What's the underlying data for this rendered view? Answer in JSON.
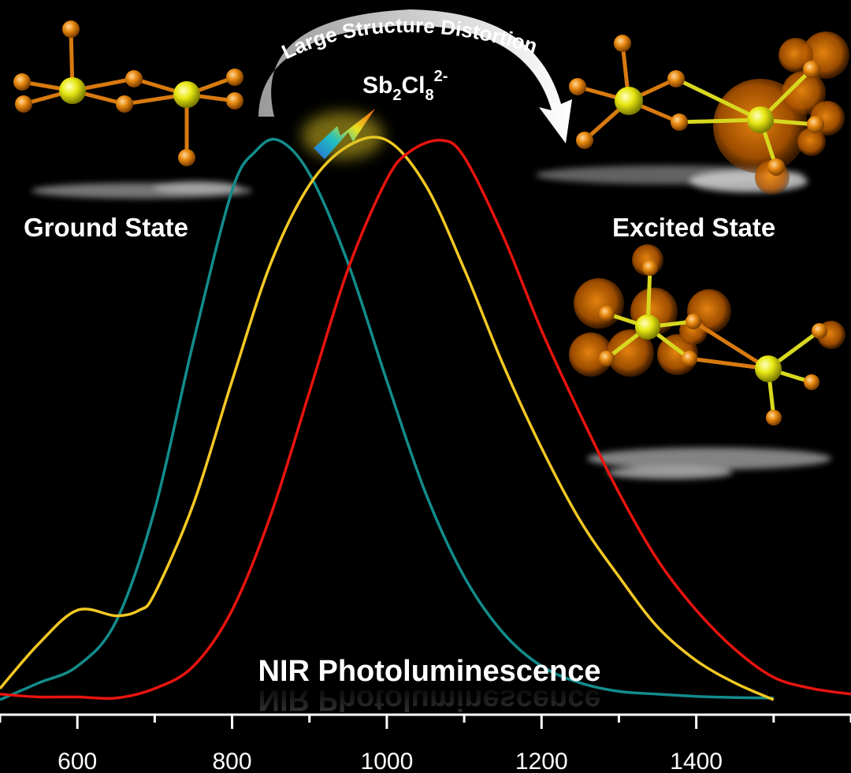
{
  "labels": {
    "ground_state": "Ground State",
    "excited_state": "Excited State",
    "distortion": "Large Structure Distortion",
    "formula": {
      "base": "Sb",
      "sub1": "2",
      "mid": "Cl",
      "sub2": "8",
      "sup": "2-"
    },
    "photoluminescence": "NIR Photoluminescence"
  },
  "colors": {
    "background": "#000000",
    "atom_sb": "#e8e814",
    "atom_cl": "#e88a10",
    "bond_sb": "#d8d820",
    "bond_cl": "#d87a10",
    "orbital_glow": "#e07800"
  },
  "chart_data": {
    "type": "line",
    "xlim": [
      500,
      1600
    ],
    "ylim": [
      0,
      1.0
    ],
    "xticks": [
      600,
      800,
      1000,
      1200,
      1400
    ],
    "xtick_labels": [
      "600",
      "800",
      "1000",
      "1200",
      "1400"
    ],
    "xlabel": "",
    "ylabel": "",
    "grid": false,
    "series": [
      {
        "color": "#138c8c",
        "x": [
          500,
          550,
          600,
          650,
          700,
          750,
          800,
          830,
          860,
          900,
          950,
          1000,
          1050,
          1100,
          1150,
          1200,
          1250,
          1300,
          1350,
          1400,
          1450,
          1500
        ],
        "y": [
          0.0,
          0.03,
          0.06,
          0.14,
          0.34,
          0.64,
          0.91,
          0.98,
          1.0,
          0.94,
          0.78,
          0.57,
          0.37,
          0.22,
          0.12,
          0.06,
          0.03,
          0.015,
          0.01,
          0.006,
          0.004,
          0.003
        ]
      },
      {
        "color": "#f2c824",
        "x": [
          500,
          550,
          600,
          650,
          680,
          700,
          750,
          800,
          850,
          900,
          950,
          1000,
          1050,
          1100,
          1150,
          1200,
          1250,
          1300,
          1350,
          1400,
          1450,
          1500
        ],
        "y": [
          0.02,
          0.1,
          0.16,
          0.15,
          0.16,
          0.19,
          0.35,
          0.57,
          0.78,
          0.92,
          0.99,
          1.0,
          0.92,
          0.77,
          0.6,
          0.45,
          0.32,
          0.22,
          0.13,
          0.07,
          0.03,
          0.0
        ]
      },
      {
        "color": "#e8140e",
        "x": [
          500,
          550,
          600,
          650,
          700,
          750,
          800,
          850,
          900,
          950,
          1000,
          1030,
          1070,
          1100,
          1150,
          1200,
          1250,
          1300,
          1350,
          1400,
          1450,
          1500,
          1550,
          1600
        ],
        "y": [
          0.01,
          0.005,
          0.005,
          0.003,
          0.02,
          0.06,
          0.16,
          0.33,
          0.55,
          0.77,
          0.93,
          0.98,
          1.0,
          0.97,
          0.83,
          0.66,
          0.51,
          0.37,
          0.25,
          0.16,
          0.09,
          0.04,
          0.02,
          0.01
        ]
      }
    ]
  }
}
